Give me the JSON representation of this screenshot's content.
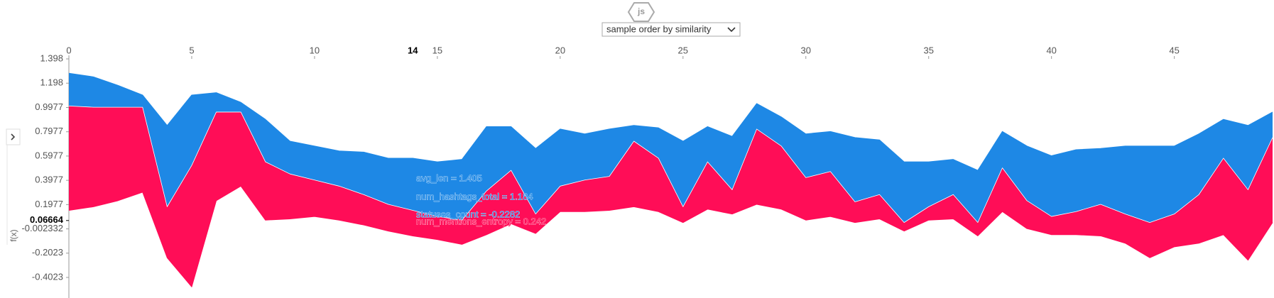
{
  "chart_data": {
    "type": "force",
    "js_label": "js",
    "order_select": "sample order by similarity",
    "y_label": "f(x)",
    "x": [
      0,
      1,
      2,
      3,
      4,
      5,
      6,
      7,
      8,
      9,
      10,
      11,
      12,
      13,
      14,
      15,
      16,
      17,
      18,
      19,
      20,
      21,
      22,
      23,
      24,
      25,
      26,
      27,
      28,
      29,
      30,
      31,
      32,
      33,
      34,
      35,
      36,
      37,
      38,
      39,
      40,
      41,
      42,
      43,
      44,
      45,
      46,
      47,
      48,
      49
    ],
    "xlim": [
      0,
      49
    ],
    "xticks": [
      0,
      5,
      10,
      15,
      20,
      25,
      30,
      35,
      40,
      45
    ],
    "selected_x": 14,
    "ylim": [
      -0.56,
      1.398
    ],
    "yticks": [
      1.398,
      1.198,
      0.9977,
      0.7977,
      0.5977,
      0.3977,
      0.1977,
      -0.002332,
      -0.2023,
      -0.4023
    ],
    "base_value": 0.06664,
    "series": [
      {
        "color": "#ff0d57",
        "values": [
          0.15,
          0.18,
          0.23,
          0.3,
          -0.24,
          -0.48,
          0.23,
          0.35,
          0.07,
          0.08,
          0.1,
          0.07,
          0.03,
          -0.02,
          -0.06,
          -0.09,
          -0.13,
          -0.05,
          0.04,
          -0.04,
          0.14,
          0.14,
          0.15,
          0.18,
          0.14,
          0.05,
          0.16,
          0.12,
          0.2,
          0.16,
          0.07,
          0.1,
          0.05,
          0.08,
          -0.02,
          0.07,
          0.08,
          -0.06,
          0.14,
          0.0,
          -0.05,
          -0.05,
          -0.06,
          -0.12,
          -0.24,
          -0.15,
          -0.12,
          -0.05,
          -0.26,
          0.05
        ]
      },
      {
        "color": "#ffffff",
        "values": [
          1.01,
          1.0,
          1.0,
          1.0,
          0.18,
          0.52,
          0.96,
          0.96,
          0.55,
          0.45,
          0.4,
          0.35,
          0.28,
          0.2,
          0.15,
          0.1,
          0.07,
          0.31,
          0.48,
          0.12,
          0.35,
          0.4,
          0.43,
          0.72,
          0.58,
          0.18,
          0.55,
          0.32,
          0.82,
          0.68,
          0.42,
          0.47,
          0.22,
          0.28,
          0.05,
          0.18,
          0.28,
          0.05,
          0.5,
          0.23,
          0.1,
          0.14,
          0.2,
          0.12,
          0.05,
          0.12,
          0.28,
          0.58,
          0.32,
          0.75
        ]
      },
      {
        "color": "#1e88e5",
        "values": [
          1.28,
          1.25,
          1.18,
          1.1,
          0.85,
          1.1,
          1.12,
          1.04,
          0.9,
          0.72,
          0.68,
          0.64,
          0.63,
          0.58,
          0.58,
          0.55,
          0.57,
          0.84,
          0.84,
          0.66,
          0.82,
          0.78,
          0.82,
          0.85,
          0.83,
          0.72,
          0.84,
          0.76,
          1.03,
          0.92,
          0.78,
          0.8,
          0.75,
          0.73,
          0.55,
          0.55,
          0.57,
          0.48,
          0.8,
          0.68,
          0.6,
          0.65,
          0.66,
          0.68,
          0.68,
          0.68,
          0.78,
          0.9,
          0.85,
          0.96
        ]
      }
    ],
    "annotations": [
      {
        "text": "avg_len = 1.405",
        "color": "#1e88e5"
      },
      {
        "text": "num_hashtags_total = 1.184",
        "color": "#1e88e5"
      },
      {
        "text": "statuses_count = -0.2282",
        "color": "#1e88e5"
      },
      {
        "text": "num_mentions_entropy = 0.242",
        "color": "#ff0d57"
      }
    ]
  }
}
